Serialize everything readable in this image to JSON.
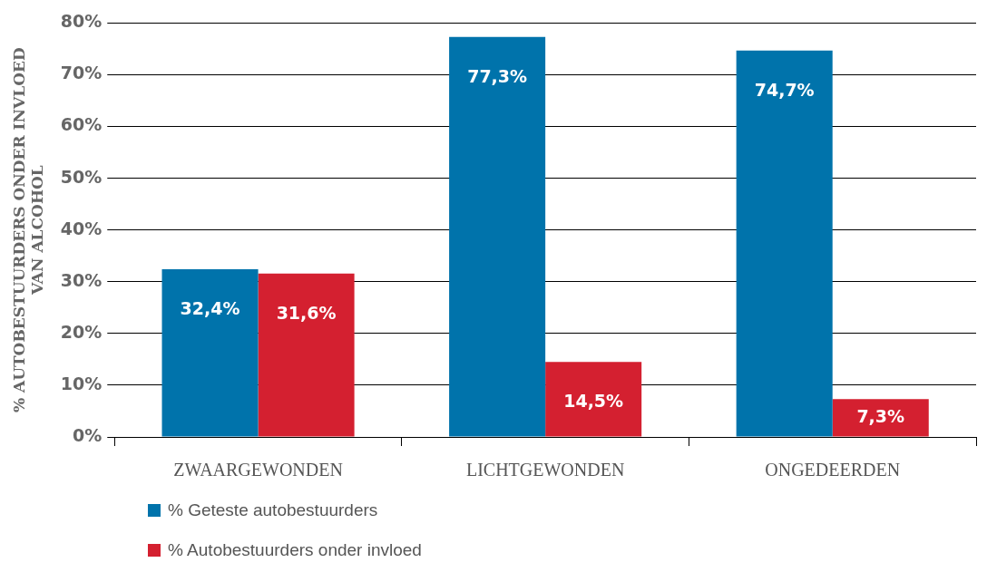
{
  "chart_data": {
    "type": "bar",
    "ylabel": "% AUTOBESTUURDERS ONDER INVLOED VAN ALCOHOL",
    "categories": [
      "ZWAARGEWONDEN",
      "LICHTGEWONDEN",
      "ONGEDEERDEN"
    ],
    "series": [
      {
        "name": "% Geteste autobestuurders",
        "color": "#0073ab",
        "values": [
          32.4,
          77.3,
          74.7
        ],
        "value_labels": [
          "32,4%",
          "77,3%",
          "74,7%"
        ]
      },
      {
        "name": "% Autobestuurders onder invloed",
        "color": "#d42030",
        "values": [
          31.6,
          14.5,
          7.3
        ],
        "value_labels": [
          "31,6%",
          "14,5%",
          "7,3%"
        ]
      }
    ],
    "ylim": [
      0,
      80
    ],
    "yticks": [
      {
        "value": 0,
        "label": "0%"
      },
      {
        "value": 10,
        "label": "10%"
      },
      {
        "value": 20,
        "label": "20%"
      },
      {
        "value": 30,
        "label": "30%"
      },
      {
        "value": 40,
        "label": "40%"
      },
      {
        "value": 50,
        "label": "50%"
      },
      {
        "value": 60,
        "label": "60%"
      },
      {
        "value": 70,
        "label": "70%"
      },
      {
        "value": 80,
        "label": "80%"
      }
    ],
    "grid": "y",
    "legend": "bottom left"
  }
}
